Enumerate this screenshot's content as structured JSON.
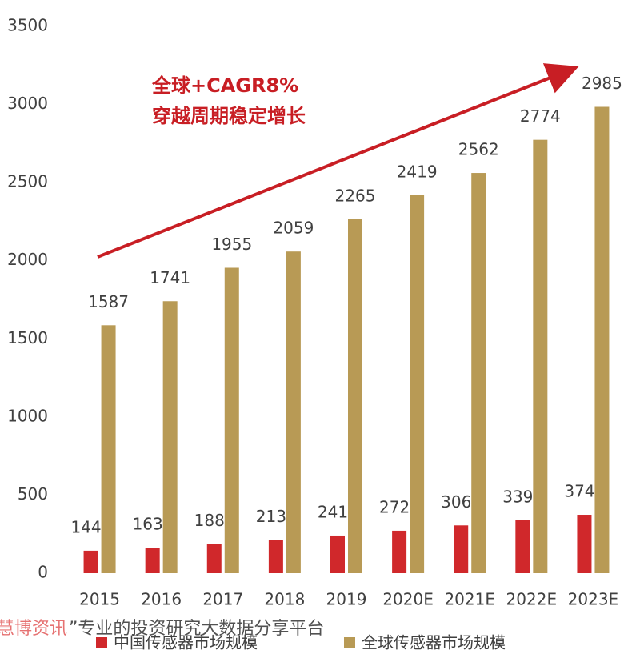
{
  "chart_data": {
    "type": "bar",
    "categories": [
      "2015",
      "2016",
      "2017",
      "2018",
      "2019",
      "2020E",
      "2021E",
      "2022E",
      "2023E"
    ],
    "series": [
      {
        "name": "中国传感器市场规模",
        "color": "#d0282b",
        "values": [
          144,
          163,
          188,
          213,
          241,
          272,
          306,
          339,
          374
        ]
      },
      {
        "name": "全球传感器市场规模",
        "color": "#b89a55",
        "values": [
          1587,
          1741,
          1955,
          2059,
          2265,
          2419,
          2562,
          2774,
          2985
        ]
      }
    ],
    "ylim": [
      0,
      3500
    ],
    "yticks": [
      0,
      500,
      1000,
      1500,
      2000,
      2500,
      3000,
      3500
    ],
    "grid": false,
    "annotations": [
      "全球+CAGR8%",
      "穿越周期稳定增长"
    ],
    "watermark": [
      "慧博资讯",
      "”专业的投资研究大数据分享平台"
    ]
  }
}
